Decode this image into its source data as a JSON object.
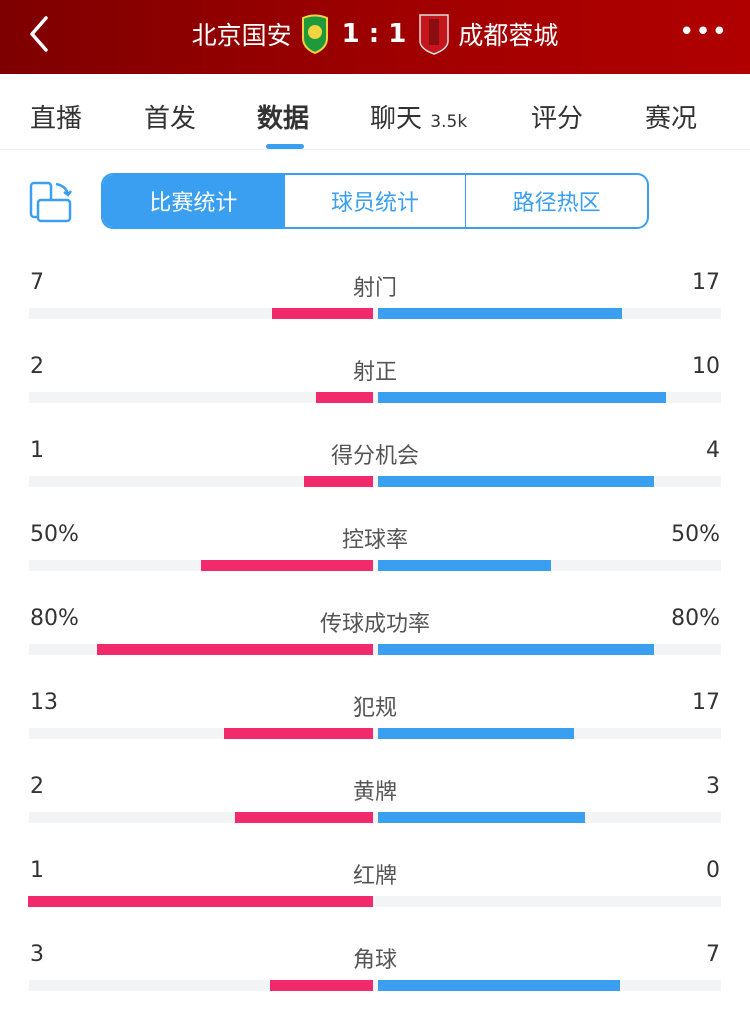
{
  "header": {
    "home_team": "北京国安",
    "score": "1 : 1",
    "away_team": "成都蓉城",
    "back_icon": "chevron-left-icon",
    "more_icon": "more-dots-icon",
    "more_label": "•••",
    "colors": {
      "bg": "#a30000"
    }
  },
  "tabs": [
    {
      "label": "直播"
    },
    {
      "label": "首发"
    },
    {
      "label": "数据",
      "active": true
    },
    {
      "label": "聊天",
      "badge": "3.5k"
    },
    {
      "label": "评分"
    },
    {
      "label": "赛况"
    }
  ],
  "segments": [
    {
      "label": "比赛统计",
      "active": true
    },
    {
      "label": "球员统计"
    },
    {
      "label": "路径热区"
    }
  ],
  "colors": {
    "home": "#f22a6c",
    "away": "#3a9ff0"
  },
  "stats": [
    {
      "name": "射门",
      "home": "7",
      "away": "17",
      "home_val": 7,
      "away_val": 17
    },
    {
      "name": "射正",
      "home": "2",
      "away": "10",
      "home_val": 2,
      "away_val": 10
    },
    {
      "name": "得分机会",
      "home": "1",
      "away": "4",
      "home_val": 1,
      "away_val": 4
    },
    {
      "name": "控球率",
      "home": "50%",
      "away": "50%",
      "home_val": 50,
      "away_val": 50,
      "percent": true
    },
    {
      "name": "传球成功率",
      "home": "80%",
      "away": "80%",
      "home_val": 80,
      "away_val": 80,
      "percent": true
    },
    {
      "name": "犯规",
      "home": "13",
      "away": "17",
      "home_val": 13,
      "away_val": 17
    },
    {
      "name": "黄牌",
      "home": "2",
      "away": "3",
      "home_val": 2,
      "away_val": 3
    },
    {
      "name": "红牌",
      "home": "1",
      "away": "0",
      "home_val": 1,
      "away_val": 0
    },
    {
      "name": "角球",
      "home": "3",
      "away": "7",
      "home_val": 3,
      "away_val": 7
    }
  ]
}
